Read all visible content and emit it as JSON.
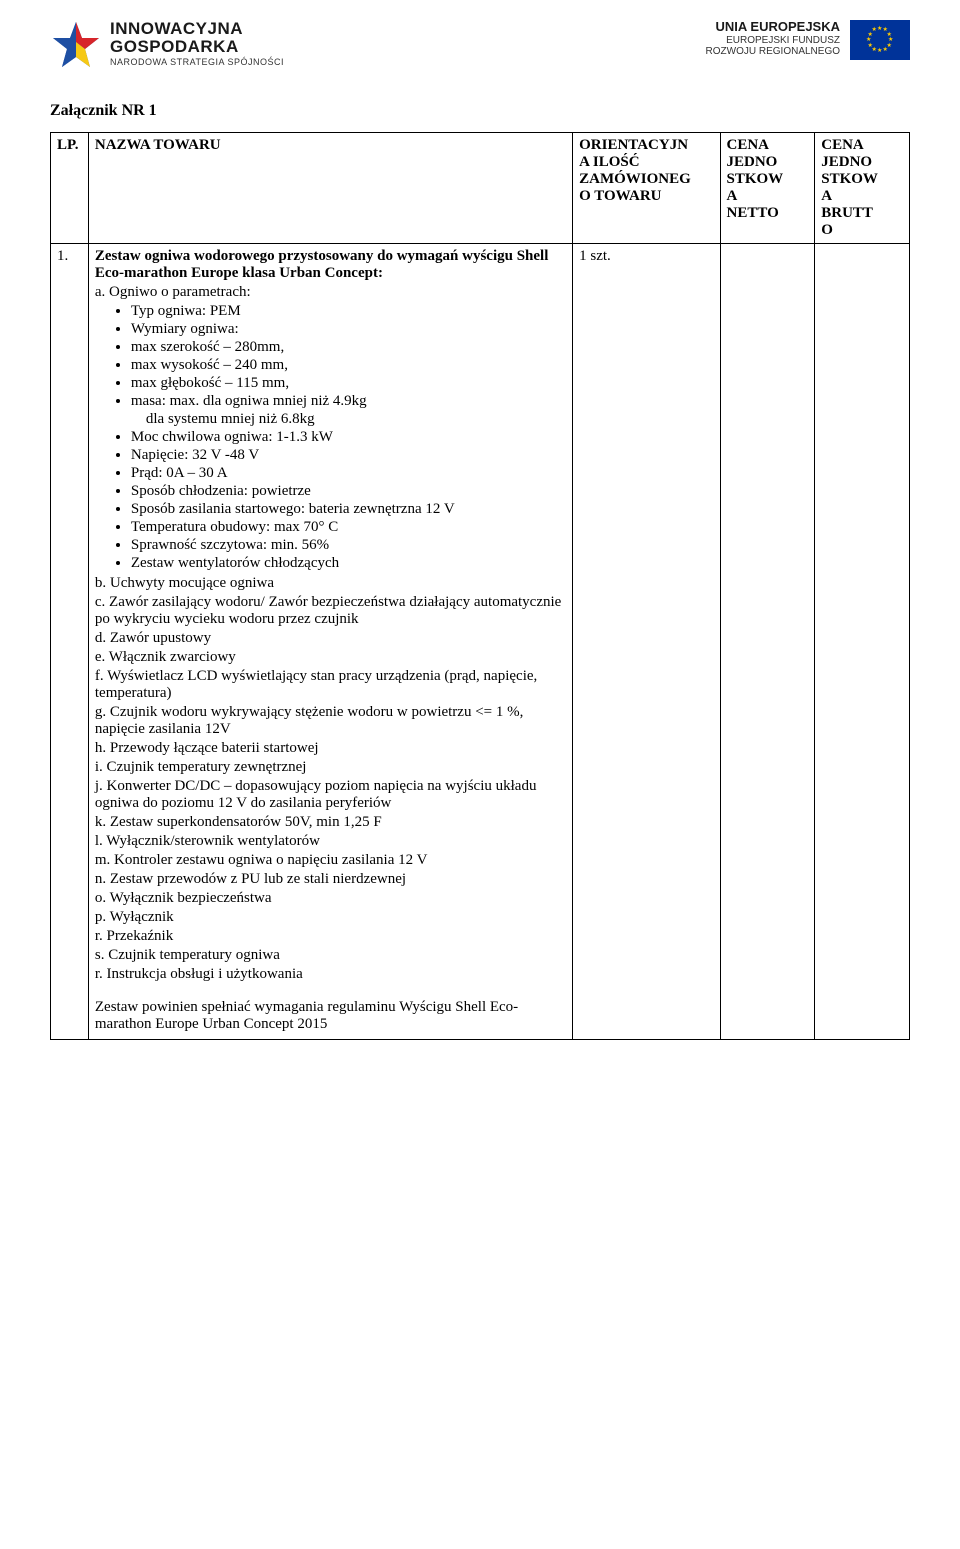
{
  "logos": {
    "ig": {
      "line1": "INNOWACYJNA",
      "line2": "GOSPODARKA",
      "line3": "NARODOWA STRATEGIA SPÓJNOŚCI"
    },
    "eu": {
      "line1": "UNIA EUROPEJSKA",
      "line2": "EUROPEJSKI FUNDUSZ",
      "line3": "ROZWOJU REGIONALNEGO"
    }
  },
  "attachment_title": "Załącznik NR 1",
  "table": {
    "headers": {
      "lp": "LP.",
      "name": "NAZWA TOWARU",
      "qty": "ORIENTACYJN\nA ILOŚĆ\nZAMÓWIONEG\nO TOWARU",
      "net": "CENA\nJEDNO\nSTKOW\nA\nNETTO",
      "gross": "CENA\nJEDNO\nSTKOW\nA\nBRUTT\nO"
    },
    "row": {
      "lp": "1.",
      "qty": "1 szt.",
      "title": "Zestaw ogniwa wodorowego przystosowany do wymagań wyścigu Shell Eco-marathon Europe klasa Urban Concept:",
      "a_label": "a. Ogniwo o parametrach:",
      "a_bullets": [
        "Typ ogniwa: PEM",
        "Wymiary ogniwa:",
        "max szerokość – 280mm,",
        "max  wysokość – 240 mm,",
        "max głębokość – 115 mm,",
        "masa: max.  dla ogniwa mniej niż 4.9kg",
        "Moc chwilowa ogniwa: 1-1.3 kW",
        "Napięcie: 32 V -48 V",
        "Prąd: 0A – 30 A",
        "Sposób chłodzenia: powietrze",
        "Sposób zasilania startowego: bateria zewnętrzna 12 V",
        "Temperatura obudowy: max 70° C",
        "Sprawność szczytowa: min. 56%",
        "Zestaw wentylatorów chłodzących"
      ],
      "a_sub_after_masa": "dla systemu mniej niż 6.8kg",
      "lines": [
        "b. Uchwyty mocujące ogniwa",
        "c. Zawór zasilający wodoru/ Zawór bezpieczeństwa działający automatycznie po wykryciu wycieku wodoru przez czujnik",
        "d. Zawór upustowy",
        "e. Włącznik zwarciowy",
        "f. Wyświetlacz LCD wyświetlający stan pracy urządzenia (prąd, napięcie, temperatura)",
        "g. Czujnik wodoru wykrywający stężenie wodoru w powietrzu <= 1 %, napięcie zasilania 12V",
        "h. Przewody łączące baterii startowej",
        "i. Czujnik temperatury zewnętrznej",
        "j. Konwerter DC/DC – dopasowujący poziom napięcia na wyjściu układu ogniwa do poziomu 12 V do zasilania peryferiów",
        "k. Zestaw superkondensatorów  50V,  min 1,25 F",
        "l. Wyłącznik/sterownik wentylatorów",
        "m. Kontroler zestawu ogniwa o  napięciu zasilania 12 V",
        "n. Zestaw przewodów z PU lub ze stali nierdzewnej",
        "o. Wyłącznik bezpieczeństwa",
        "p. Wyłącznik",
        "r. Przekaźnik",
        "s. Czujnik temperatury ogniwa",
        "r. Instrukcja obsługi i użytkowania"
      ],
      "footer": "Zestaw powinien spełniać wymagania regulaminu Wyścigu Shell Eco-marathon Europe Urban Concept 2015"
    }
  },
  "colors": {
    "eu_blue": "#003399",
    "eu_yellow": "#ffcc00",
    "ig_blue": "#1e4fa3",
    "ig_red": "#d7252a",
    "ig_yellow": "#f6c914"
  }
}
